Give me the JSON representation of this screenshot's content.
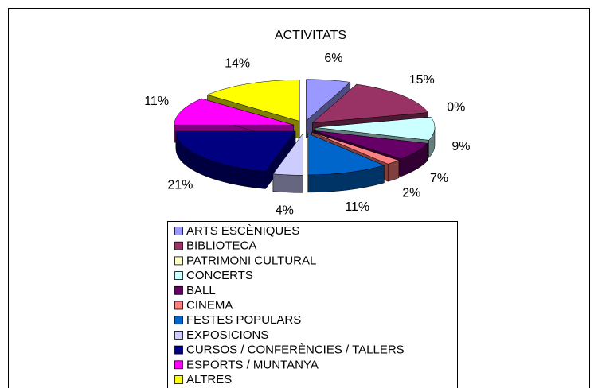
{
  "chart_data": {
    "type": "pie3d",
    "title": "ACTIVITATS",
    "categories": [
      "ARTS ESCÈNIQUES",
      "BIBLIOTECA",
      "PATRIMONI CULTURAL",
      "CONCERTS",
      "BALL",
      "CINEMA",
      "FESTES POPULARS",
      "EXPOSICIONS",
      "CURSOS / CONFERÈNCIES / TALLERS",
      "ESPORTS / MUNTANYA",
      "ALTRES"
    ],
    "values": [
      6,
      15,
      0,
      9,
      7,
      2,
      11,
      4,
      21,
      11,
      14
    ],
    "value_labels": [
      "6%",
      "15%",
      "0%",
      "9%",
      "7%",
      "2%",
      "11%",
      "4%",
      "21%",
      "11%",
      "14%"
    ],
    "colors": [
      "#9999FF",
      "#993366",
      "#FFFFCC",
      "#CCFFFF",
      "#660066",
      "#FF8080",
      "#0066CC",
      "#CCCCFF",
      "#000080",
      "#FF00FF",
      "#FFFF00"
    ]
  }
}
